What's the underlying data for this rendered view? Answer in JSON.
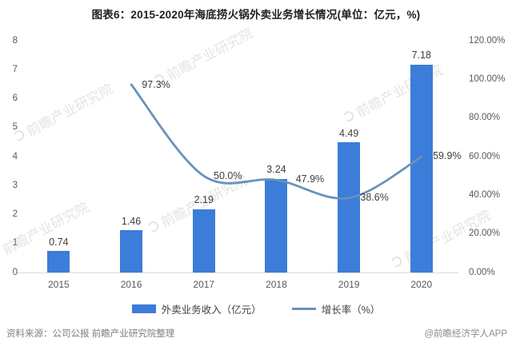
{
  "title": "图表6：2015-2020年海底捞火锅外卖业务增长情况(单位：亿元，%)",
  "chart_data": {
    "type": "bar",
    "subtype": "combo-bar-line-dual-axis",
    "categories": [
      "2015",
      "2016",
      "2017",
      "2018",
      "2019",
      "2020"
    ],
    "series": [
      {
        "name": "外卖业务收入（亿元）",
        "type": "bar",
        "axis": "left",
        "color": "#3b7dd8",
        "values": [
          0.74,
          1.46,
          2.19,
          3.24,
          4.49,
          7.18
        ],
        "labels": [
          "0.74",
          "1.46",
          "2.19",
          "3.24",
          "4.49",
          "7.18"
        ]
      },
      {
        "name": "增长率（%）",
        "type": "line",
        "axis": "right",
        "color": "#6a91bb",
        "categories": [
          "2016",
          "2017",
          "2018",
          "2019",
          "2020"
        ],
        "values": [
          97.3,
          50.0,
          47.9,
          38.6,
          59.9
        ],
        "labels": [
          "97.3%",
          "50.0%",
          "47.9%",
          "38.6%",
          "59.9%"
        ]
      }
    ],
    "left_axis": {
      "min": 0,
      "max": 8,
      "tick_step": 1,
      "ticks": [
        "8",
        "7",
        "6",
        "5",
        "4",
        "3",
        "2",
        "1",
        "0"
      ]
    },
    "right_axis": {
      "min": 0,
      "max": 120,
      "tick_step": 20,
      "ticks": [
        "120.00%",
        "100.00%",
        "80.00%",
        "60.00%",
        "40.00%",
        "20.00%",
        "0.00%"
      ]
    },
    "grid": "off",
    "legend_position": "bottom",
    "legend": [
      "外卖业务收入（亿元）",
      "增长率（%）"
    ]
  },
  "watermark": {
    "diagonal_text": "前瞻产业研究院"
  },
  "footer": {
    "source": "资料来源：公司公报 前瞻产业研究院整理",
    "brand": "@前瞻经济学人APP"
  }
}
